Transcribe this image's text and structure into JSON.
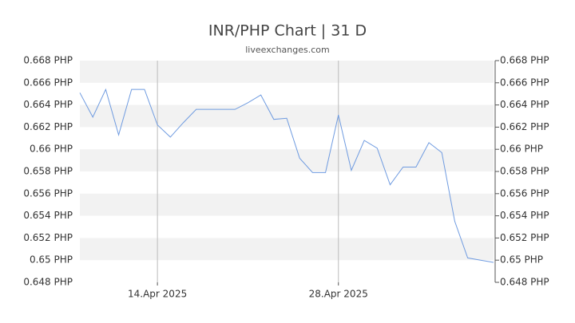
{
  "chart_data": {
    "type": "line",
    "title": "INR/PHP Chart | 31 D",
    "subtitle": "liveexchanges.com",
    "categories": [
      null,
      null,
      null,
      null,
      null,
      null,
      "14.Apr 2025",
      null,
      null,
      null,
      null,
      null,
      null,
      null,
      null,
      null,
      null,
      null,
      null,
      null,
      "28.Apr 2025",
      null,
      null,
      null,
      null,
      null,
      null,
      null,
      null,
      null,
      null,
      null,
      null
    ],
    "series": [
      {
        "name": "INR/PHP",
        "color": "#6f9be0",
        "values": [
          0.6651,
          0.6629,
          0.6654,
          0.6613,
          0.6654,
          0.6654,
          0.6622,
          0.6611,
          0.6624,
          0.6636,
          0.6636,
          0.6636,
          0.6636,
          0.6642,
          0.6649,
          0.6627,
          0.6628,
          0.6592,
          0.6579,
          0.6579,
          0.6631,
          0.6581,
          0.6608,
          0.6601,
          0.6568,
          0.6584,
          0.6584,
          0.6606,
          0.6597,
          0.6535,
          0.6502,
          0.65,
          0.6498
        ]
      }
    ],
    "ylim": [
      0.648,
      0.668
    ],
    "yticks": [
      {
        "value": 0.648,
        "label": "0.648 PHP"
      },
      {
        "value": 0.65,
        "label": "0.65 PHP"
      },
      {
        "value": 0.652,
        "label": "0.652 PHP"
      },
      {
        "value": 0.654,
        "label": "0.654 PHP"
      },
      {
        "value": 0.656,
        "label": "0.656 PHP"
      },
      {
        "value": 0.658,
        "label": "0.658 PHP"
      },
      {
        "value": 0.66,
        "label": "0.66 PHP"
      },
      {
        "value": 0.662,
        "label": "0.662 PHP"
      },
      {
        "value": 0.664,
        "label": "0.664 PHP"
      },
      {
        "value": 0.666,
        "label": "0.666 PHP"
      },
      {
        "value": 0.668,
        "label": "0.668 PHP"
      }
    ],
    "y2lim": [
      0.648,
      0.668
    ],
    "y2ticks": [
      {
        "value": 0.648,
        "label": "0.648 PHP"
      },
      {
        "value": 0.65,
        "label": "0.65 PHP"
      },
      {
        "value": 0.652,
        "label": "0.652 PHP"
      },
      {
        "value": 0.654,
        "label": "0.654 PHP"
      },
      {
        "value": 0.656,
        "label": "0.656 PHP"
      },
      {
        "value": 0.658,
        "label": "0.658 PHP"
      },
      {
        "value": 0.66,
        "label": "0.66 PHP"
      },
      {
        "value": 0.662,
        "label": "0.662 PHP"
      },
      {
        "value": 0.664,
        "label": "0.664 PHP"
      },
      {
        "value": 0.666,
        "label": "0.666 PHP"
      },
      {
        "value": 0.668,
        "label": "0.668 PHP"
      }
    ],
    "grid": true
  }
}
